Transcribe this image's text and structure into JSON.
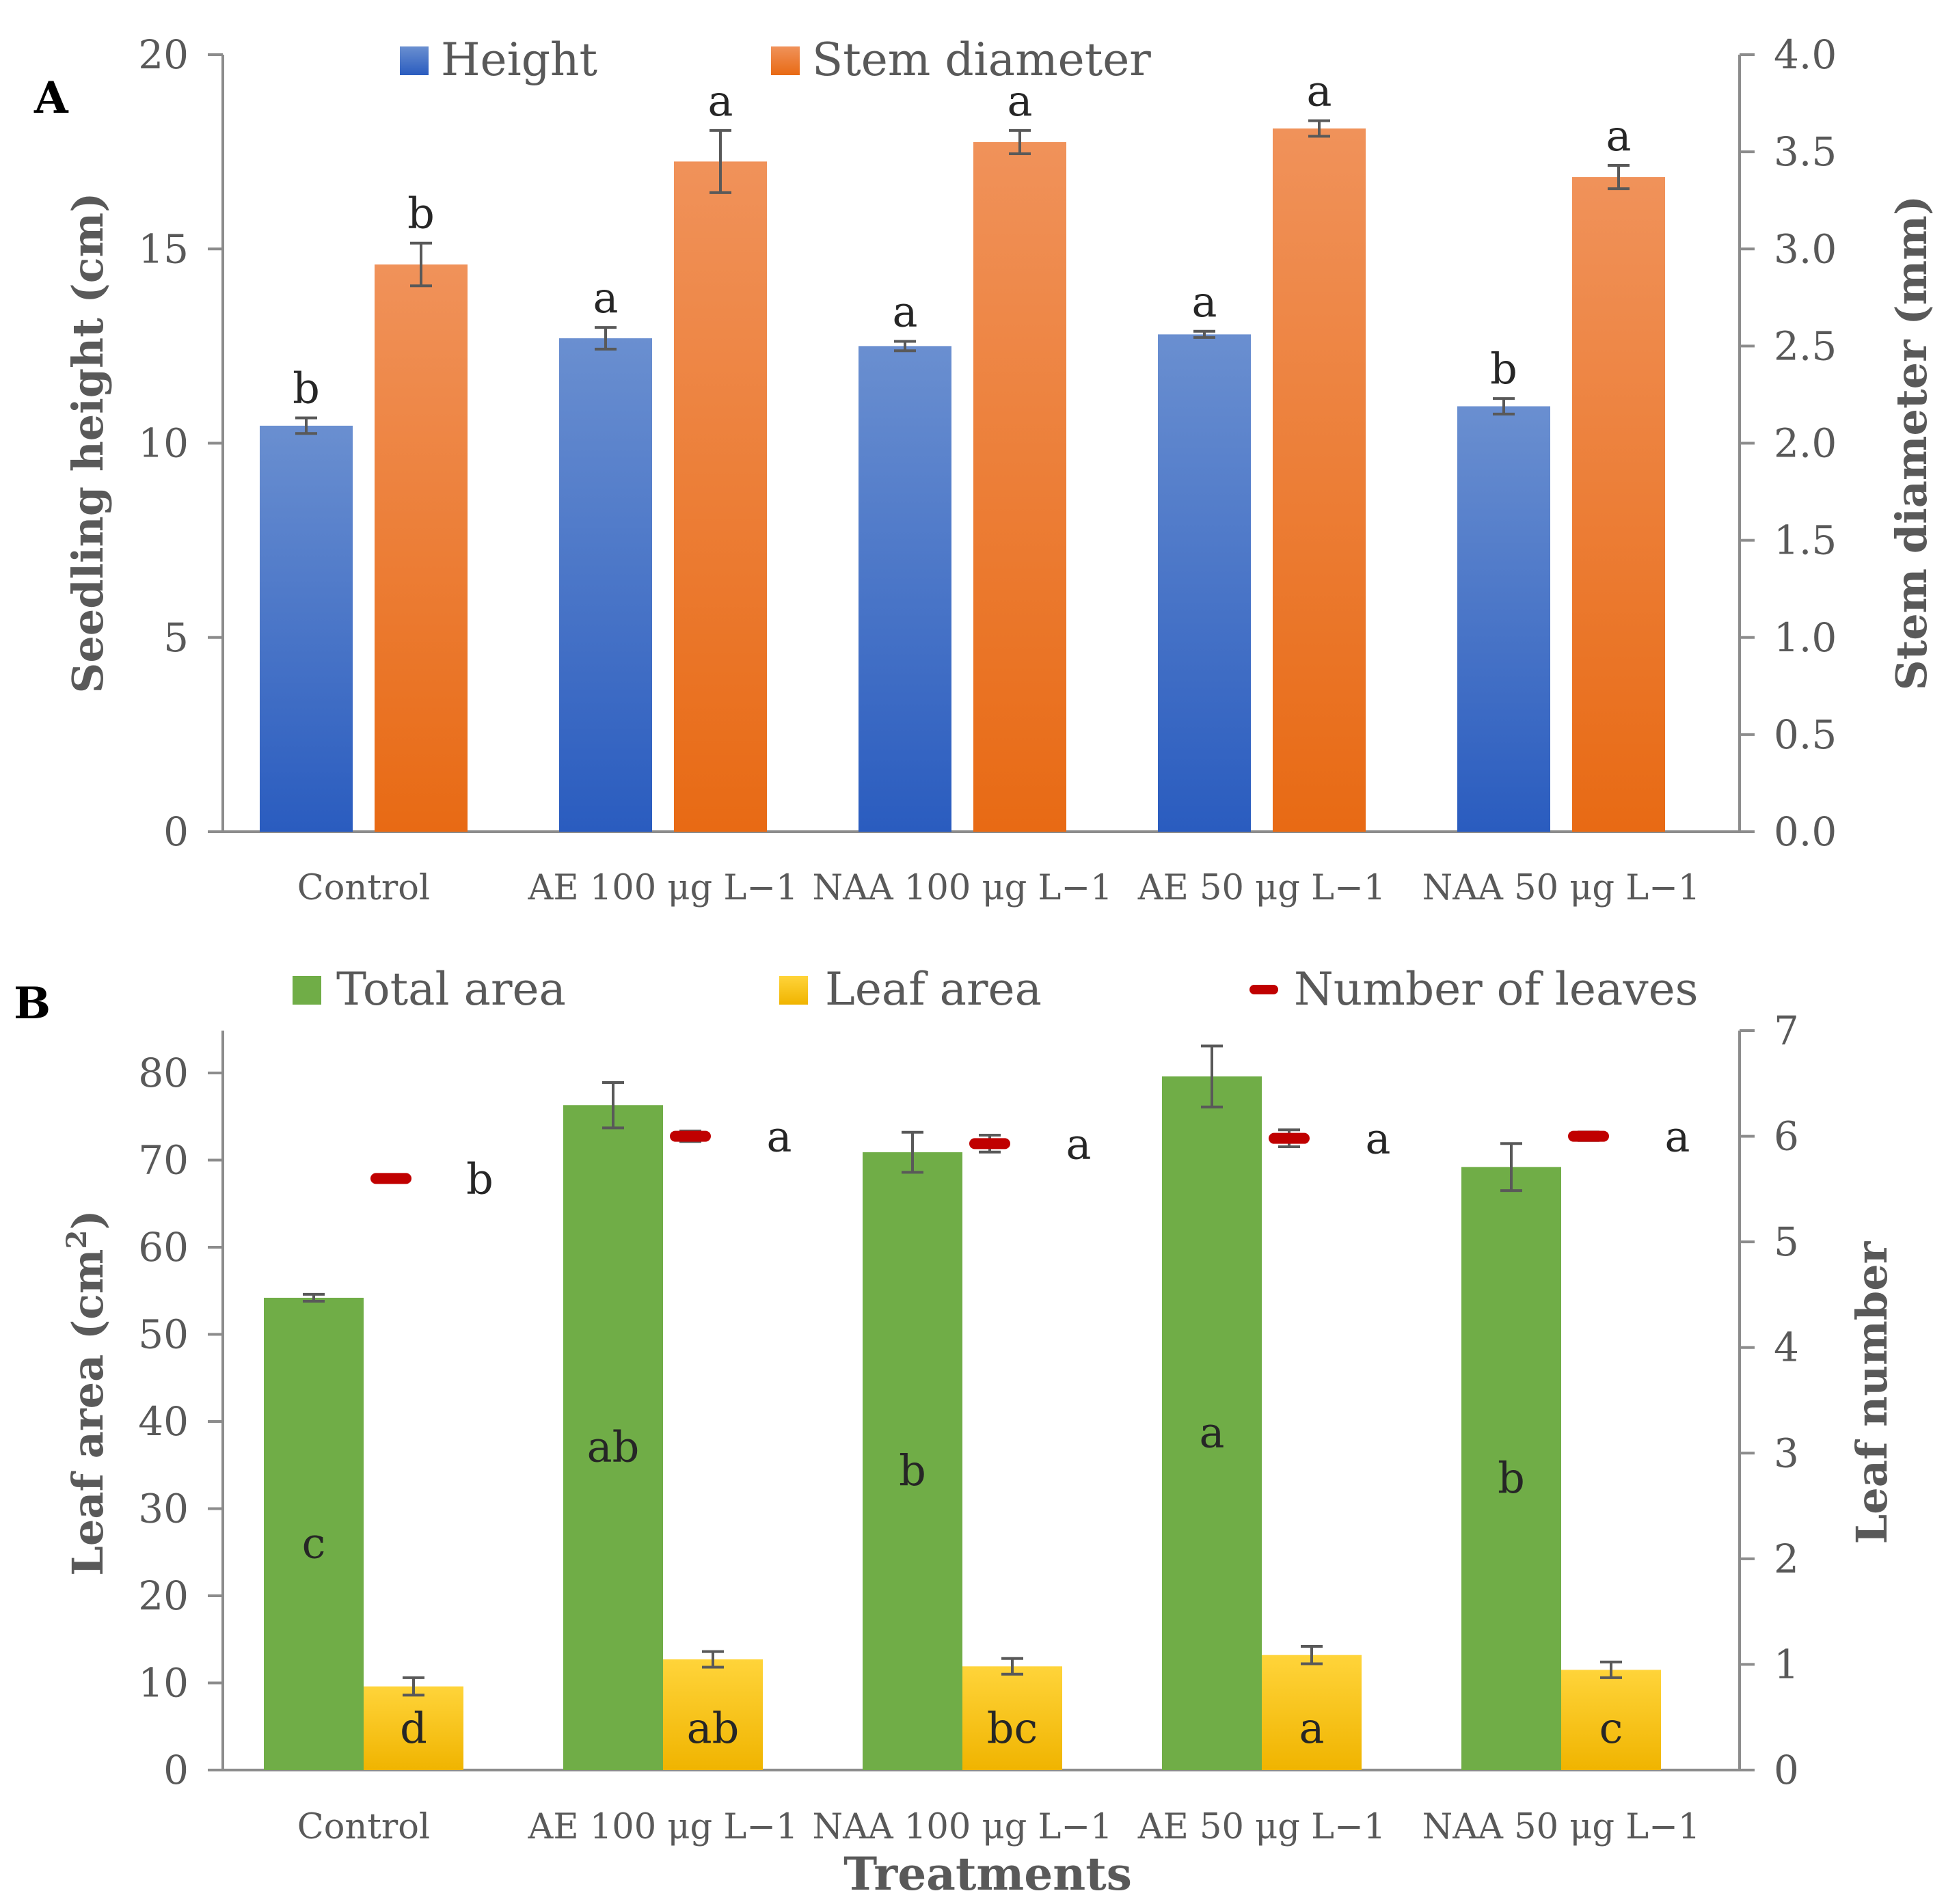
{
  "chart_data": [
    {
      "panel": "A",
      "type": "bar",
      "categories": [
        "Control",
        "AE 100 μg L−1",
        "NAA 100 μg L−1",
        "AE 50 μg L−1",
        "NAA 50 μg L−1"
      ],
      "series": [
        {
          "name": "Height",
          "axis": "left",
          "values": [
            10.45,
            12.7,
            12.5,
            12.8,
            10.95
          ],
          "errors": [
            0.2,
            0.28,
            0.12,
            0.08,
            0.2
          ],
          "letters": [
            "b",
            "a",
            "a",
            "a",
            "b"
          ],
          "color": "#4472c4"
        },
        {
          "name": "Stem diameter",
          "axis": "right",
          "values": [
            2.92,
            3.45,
            3.55,
            3.62,
            3.37
          ],
          "errors": [
            0.11,
            0.16,
            0.06,
            0.04,
            0.06
          ],
          "letters": [
            "b",
            "a",
            "a",
            "a",
            "a"
          ],
          "color": "#ed7d31"
        }
      ],
      "ylabel": "Seedling height (cm)",
      "ylim": [
        0,
        20
      ],
      "yticks": [
        "0",
        "5",
        "10",
        "15",
        "20"
      ],
      "y2label": "Stem diameter (mm)",
      "y2lim": [
        0,
        4
      ],
      "y2ticks": [
        "0.0",
        "0.5",
        "1.0",
        "1.5",
        "2.0",
        "2.5",
        "3.0",
        "3.5",
        "4.0"
      ],
      "legend": "top"
    },
    {
      "panel": "B",
      "type": "bar",
      "categories": [
        "Control",
        "AE 100 μg L−1",
        "NAA 100 μg L−1",
        "AE 50 μg L−1",
        "NAA 50 μg L−1"
      ],
      "series": [
        {
          "name": "Total area",
          "axis": "left",
          "values": [
            54.2,
            76.3,
            70.9,
            79.6,
            69.2
          ],
          "errors": [
            0.4,
            2.6,
            2.3,
            3.5,
            2.7
          ],
          "letters": [
            "c",
            "ab",
            "b",
            "a",
            "b"
          ],
          "color": "#70ad47"
        },
        {
          "name": "Leaf area",
          "axis": "left",
          "values": [
            9.6,
            12.7,
            11.9,
            13.2,
            11.5
          ],
          "errors": [
            1.0,
            0.9,
            0.9,
            1.0,
            0.9
          ],
          "letters": [
            "d",
            "ab",
            "bc",
            "a",
            "c"
          ],
          "color": "#ffc000"
        },
        {
          "name": "Number of leaves",
          "axis": "right",
          "marker": "dash",
          "values": [
            5.6,
            6.0,
            5.93,
            5.98,
            6.0
          ],
          "errors": [
            0.03,
            0.05,
            0.08,
            0.08,
            0.04
          ],
          "letters": [
            "b",
            "a",
            "a",
            "a",
            "a"
          ],
          "color": "#c00000"
        }
      ],
      "ylabel": "Leaf area (cm",
      "ylabel_sup": "2",
      "ylabel_end": ")",
      "ylim": [
        0,
        85
      ],
      "yticks": [
        "0",
        "10",
        "20",
        "30",
        "40",
        "50",
        "60",
        "70",
        "80"
      ],
      "y2label": "Leaf number",
      "y2lim": [
        0,
        7
      ],
      "y2ticks": [
        "0",
        "1",
        "2",
        "3",
        "4",
        "5",
        "6",
        "7"
      ],
      "xlabel": "Treatments",
      "legend": "top"
    }
  ]
}
